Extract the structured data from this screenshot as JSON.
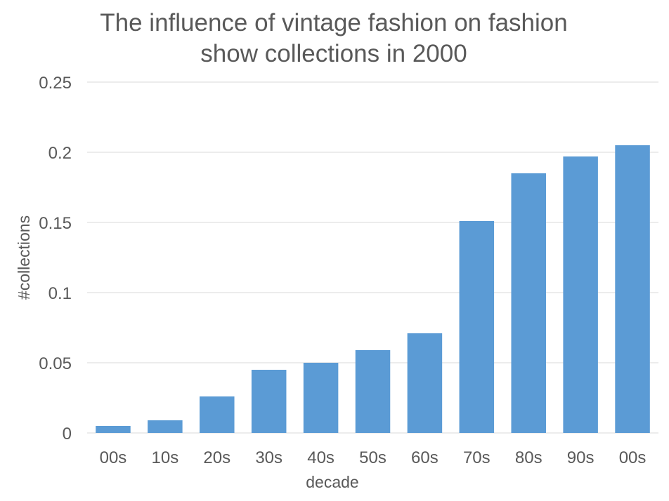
{
  "chart_data": {
    "type": "bar",
    "title_lines": [
      "The influence of vintage fashion on fashion",
      "show collections in 2000"
    ],
    "categories": [
      "00s",
      "10s",
      "20s",
      "30s",
      "40s",
      "50s",
      "60s",
      "70s",
      "80s",
      "90s",
      "00s"
    ],
    "values": [
      0.005,
      0.009,
      0.026,
      0.045,
      0.05,
      0.059,
      0.071,
      0.151,
      0.185,
      0.197,
      0.205
    ],
    "xlabel": "decade",
    "ylabel": "#collections",
    "ylim": [
      0,
      0.25
    ],
    "yticks": [
      0,
      0.05,
      0.1,
      0.15,
      0.2,
      0.25
    ],
    "ytick_labels": [
      "0",
      "0.05",
      "0.1",
      "0.15",
      "0.2",
      "0.25"
    ],
    "bar_color": "#5b9bd5",
    "grid": true,
    "legend": "none"
  }
}
